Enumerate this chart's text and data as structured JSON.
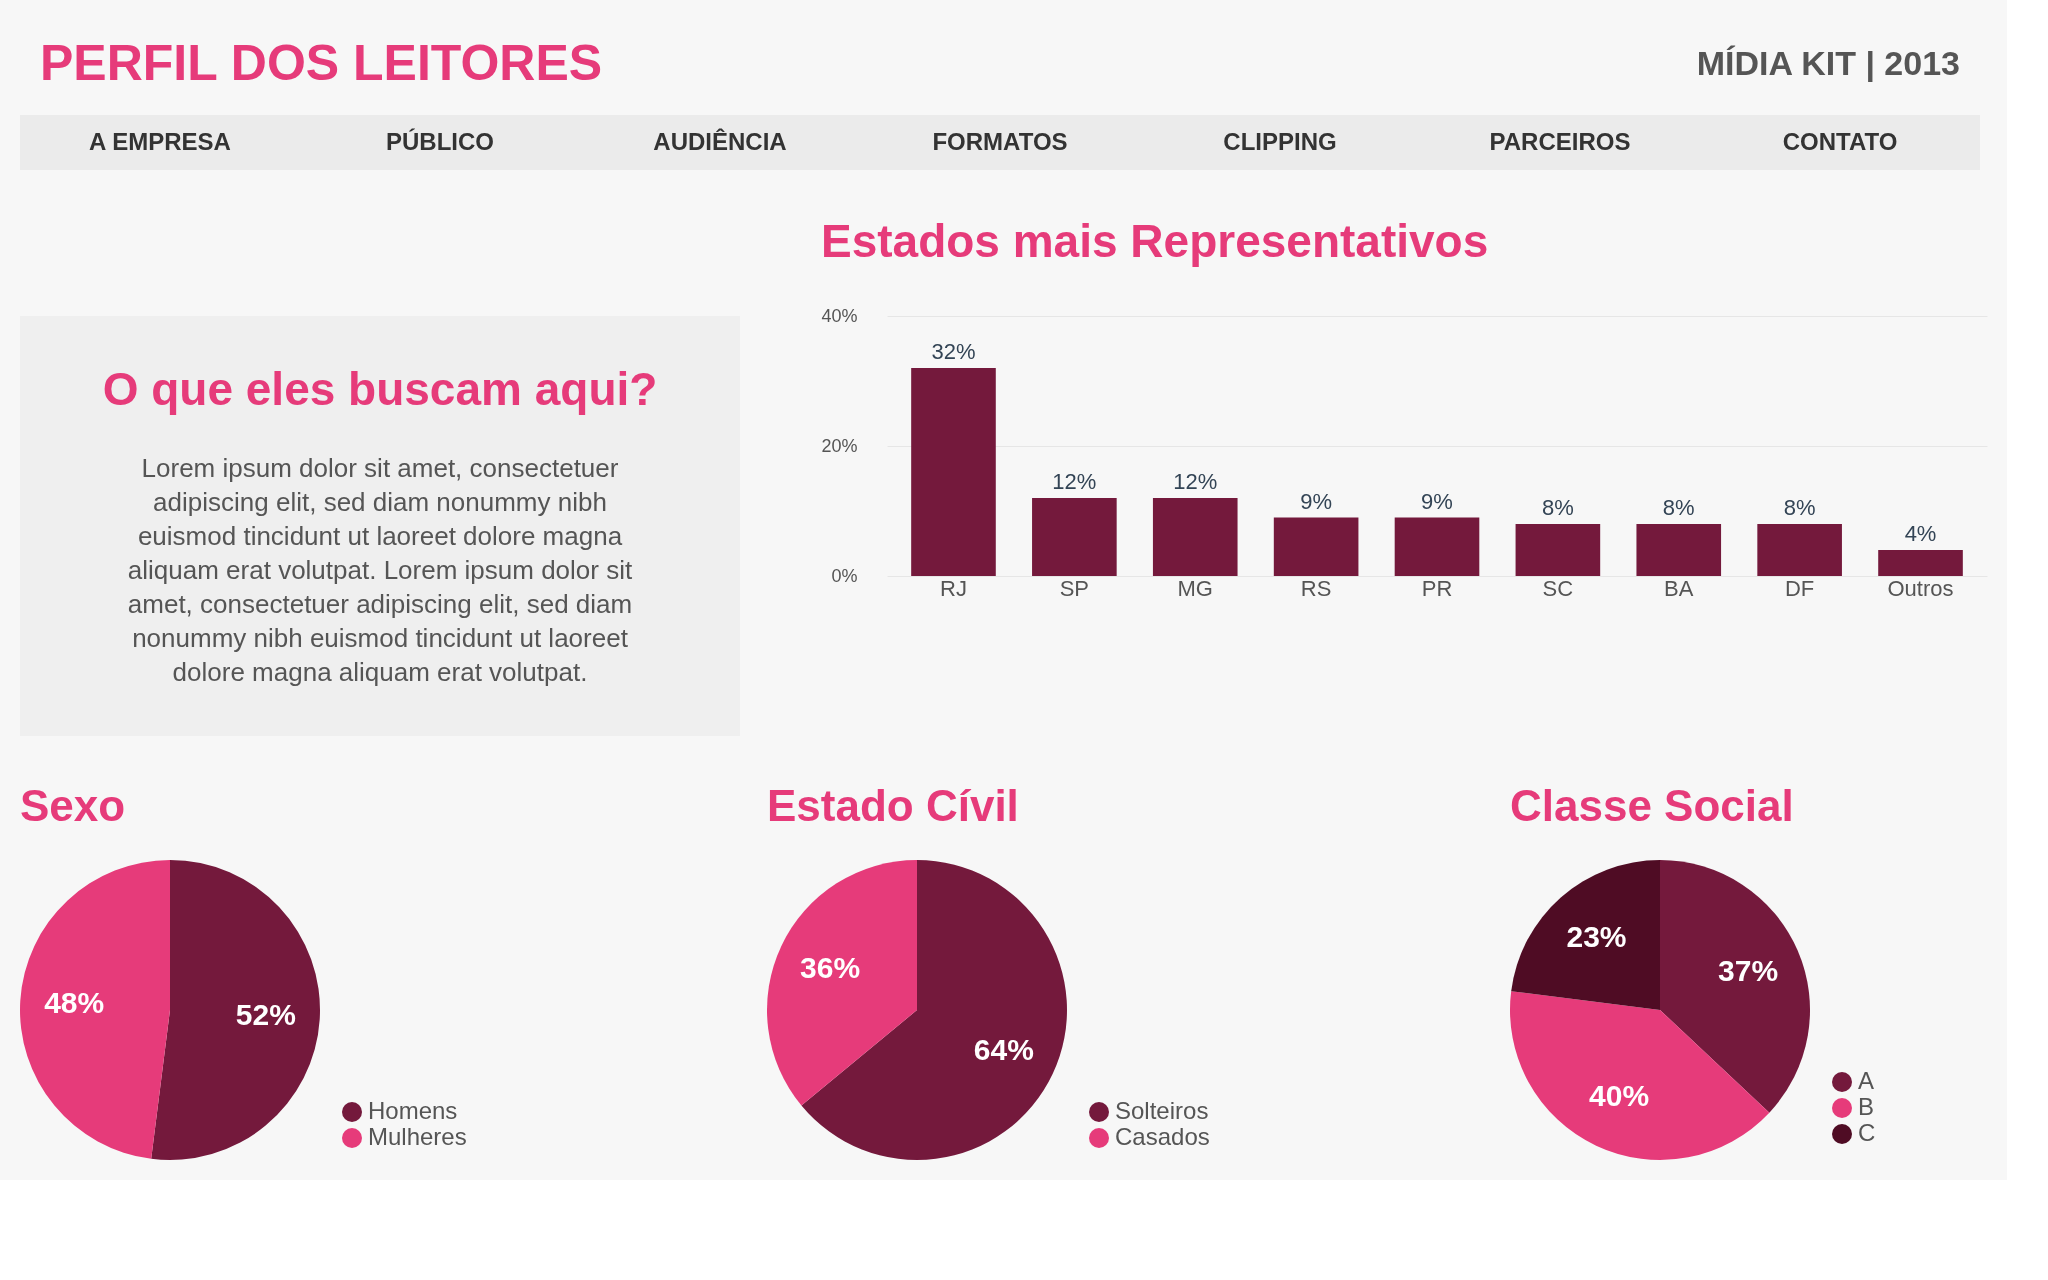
{
  "chart_data": [
    {
      "type": "other",
      "title": "PERFIL DOS LEITORES",
      "annotations": [
        "MÍDIA KIT | 2013",
        "A EMPRESA",
        "PÚBLICO",
        "AUDIÊNCIA",
        "FORMATOS",
        "CLIPPING",
        "PARCEIROS",
        "CONTATO"
      ]
    },
    {
      "type": "other",
      "title": "O que eles buscam aqui?",
      "annotations": [
        "Lorem ipsum dolor sit amet, consectetuer adipiscing elit, sed diam nonummy nibh euismod tincidunt ut laoreet dolore magna aliquam erat volutpat. Lorem ipsum dolor sit amet, consectetuer adipiscing elit, sed diam nonummy nibh euismod tincidunt ut laoreet dolore magna aliquam erat volutpat."
      ]
    },
    {
      "type": "bar",
      "title": "Estados mais Representativos",
      "categories": [
        "RJ",
        "SP",
        "MG",
        "RS",
        "PR",
        "SC",
        "BA",
        "DF",
        "Outros"
      ],
      "values": [
        32,
        12,
        12,
        9,
        9,
        8,
        8,
        8,
        4
      ],
      "color": "#74193c",
      "ylim": [
        0,
        40
      ],
      "yticks": [
        {
          "value": 0,
          "label": "0%"
        },
        {
          "value": 20,
          "label": "20%"
        },
        {
          "value": 40,
          "label": "40%"
        }
      ],
      "grid": "y",
      "value_labels": [
        "32%",
        "12%",
        "12%",
        "9%",
        "9%",
        "8%",
        "8%",
        "8%",
        "4%"
      ]
    },
    {
      "type": "pie",
      "title": "Sexo",
      "categories": [
        "Homens",
        "Mulheres"
      ],
      "values": [
        52,
        48
      ],
      "colors": [
        "#74193c",
        "#e63b7a"
      ],
      "value_labels": [
        "52%",
        "48%"
      ],
      "legend": "bottom right"
    },
    {
      "type": "pie",
      "title": "Estado Cívil",
      "categories": [
        "Solteiros",
        "Casados"
      ],
      "values": [
        64,
        36
      ],
      "colors": [
        "#74193c",
        "#e63b7a"
      ],
      "value_labels": [
        "64%",
        "36%"
      ],
      "legend": "bottom right"
    },
    {
      "type": "pie",
      "title": "Classe Social",
      "categories": [
        "A",
        "B",
        "C"
      ],
      "values": [
        37,
        40,
        23
      ],
      "colors": [
        "#74193c",
        "#e63b7a",
        "#4f0c24"
      ],
      "value_labels": [
        "37%",
        "40%",
        "23%"
      ],
      "legend": "bottom right"
    }
  ]
}
